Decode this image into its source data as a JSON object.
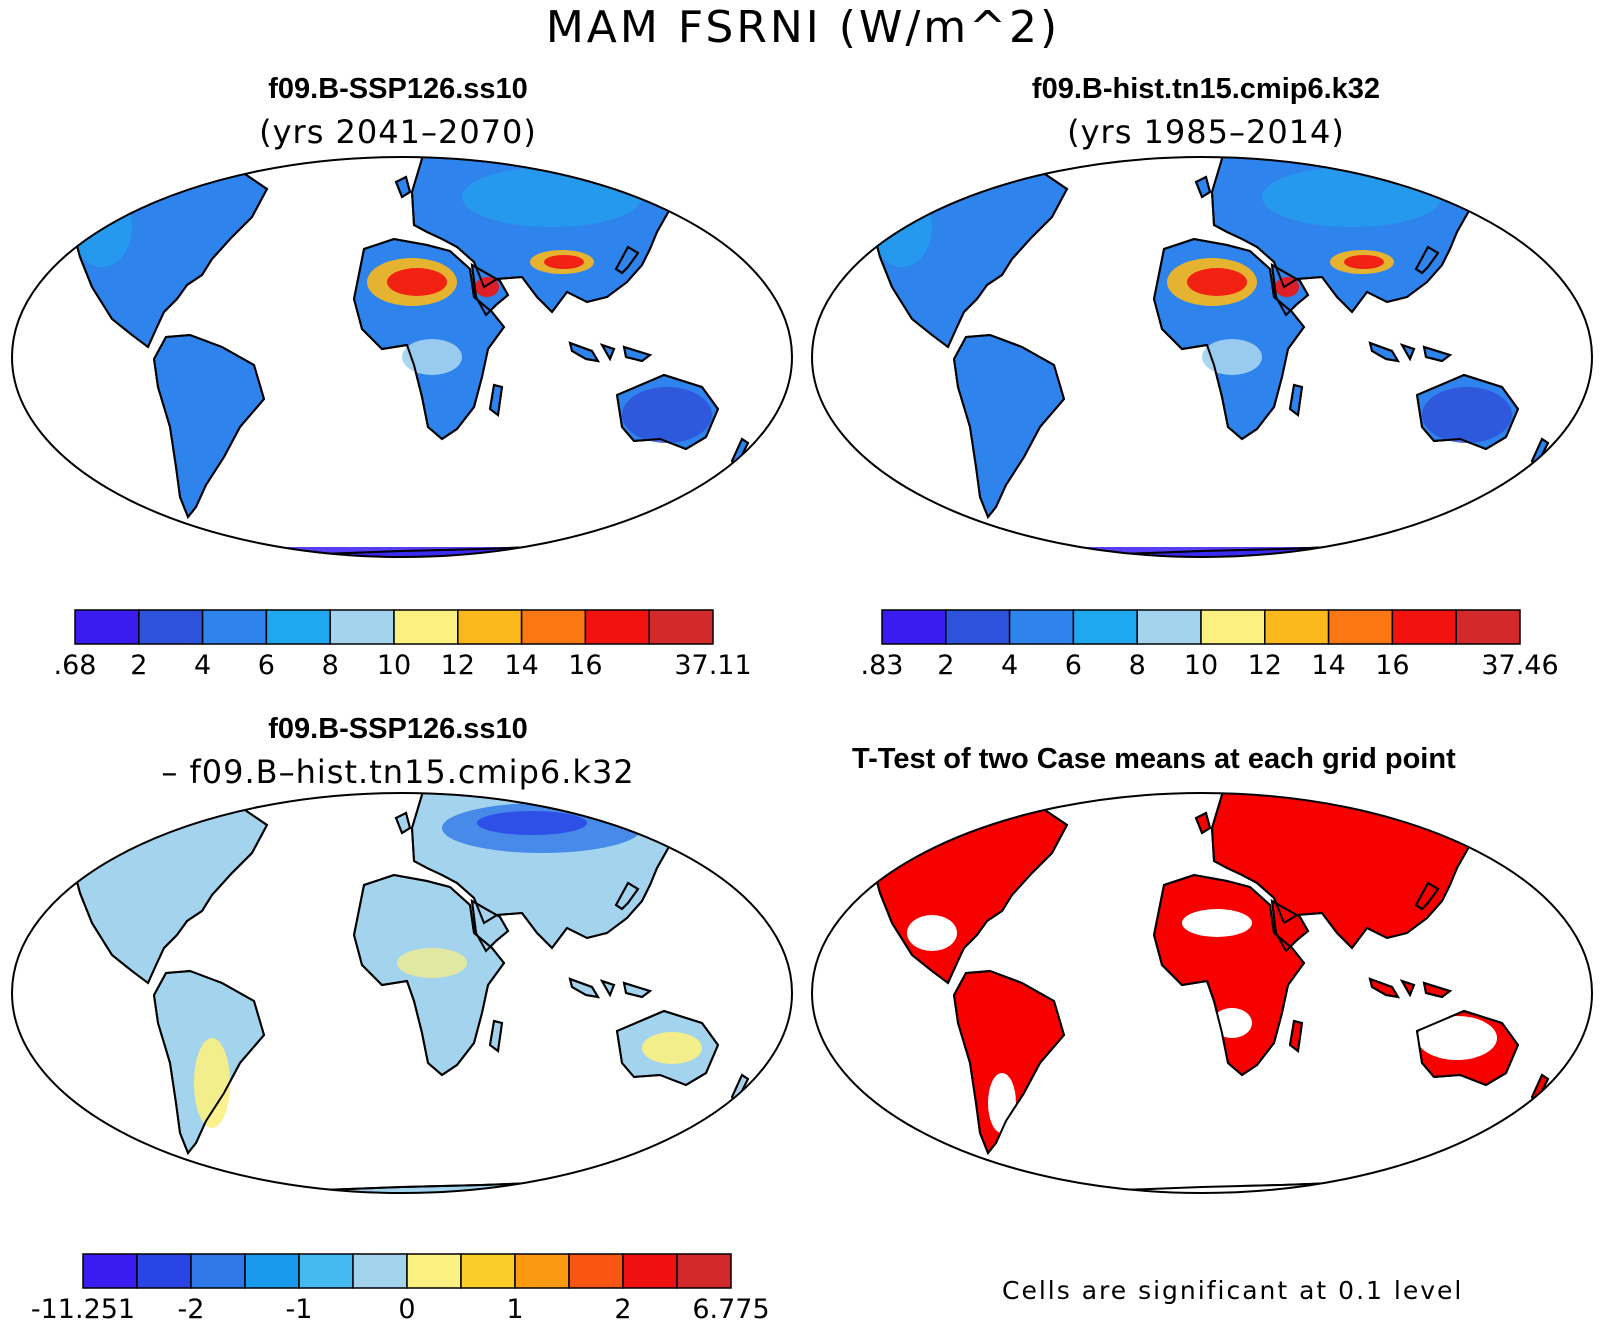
{
  "title": "MAM FSRNI (W/m^2)",
  "panels": [
    {
      "title": "f09.B-SSP126.ss10",
      "subtitle": "(yrs 2041–2070)"
    },
    {
      "title": "f09.B-hist.tn15.cmip6.k32",
      "subtitle": "(yrs 1985–2014)"
    },
    {
      "title": "f09.B-SSP126.ss10",
      "subtitle": "– f09.B–hist.tn15.cmip6.k32"
    },
    {
      "title": "T-Test of two Case means at each grid point",
      "subtitle": ""
    }
  ],
  "colorbars": [
    {
      "labels": [
        ".68",
        "2",
        "4",
        "6",
        "8",
        "10",
        "12",
        "14",
        "16",
        "37.11"
      ],
      "colors": [
        "#3b1cf0",
        "#2e52db",
        "#2f83ec",
        "#1fa8ef",
        "#a4d3ee",
        "#fbf181",
        "#fbb81d",
        "#fb7711",
        "#f2120f",
        "#d22a2a"
      ]
    },
    {
      "labels": [
        ".83",
        "2",
        "4",
        "6",
        "8",
        "10",
        "12",
        "14",
        "16",
        "37.46"
      ],
      "colors": [
        "#3b1cf0",
        "#2e52db",
        "#2f83ec",
        "#1fa8ef",
        "#a4d3ee",
        "#fbf181",
        "#fbb81d",
        "#fb7711",
        "#f2120f",
        "#d22a2a"
      ]
    },
    {
      "labels": [
        "-11.251",
        "-2",
        "-1",
        "0",
        "1",
        "2",
        "6.775"
      ],
      "colors": [
        "#3b1cf0",
        "#2a45e6",
        "#2f78e9",
        "#1a9aee",
        "#44baf0",
        "#a4d3ee",
        "#fbf181",
        "#fbcd2a",
        "#fb9a10",
        "#f85512",
        "#f01010",
        "#d22a2a"
      ]
    }
  ],
  "significance_color": "#f70000",
  "footnote": "Cells are significant at 0.1 level"
}
